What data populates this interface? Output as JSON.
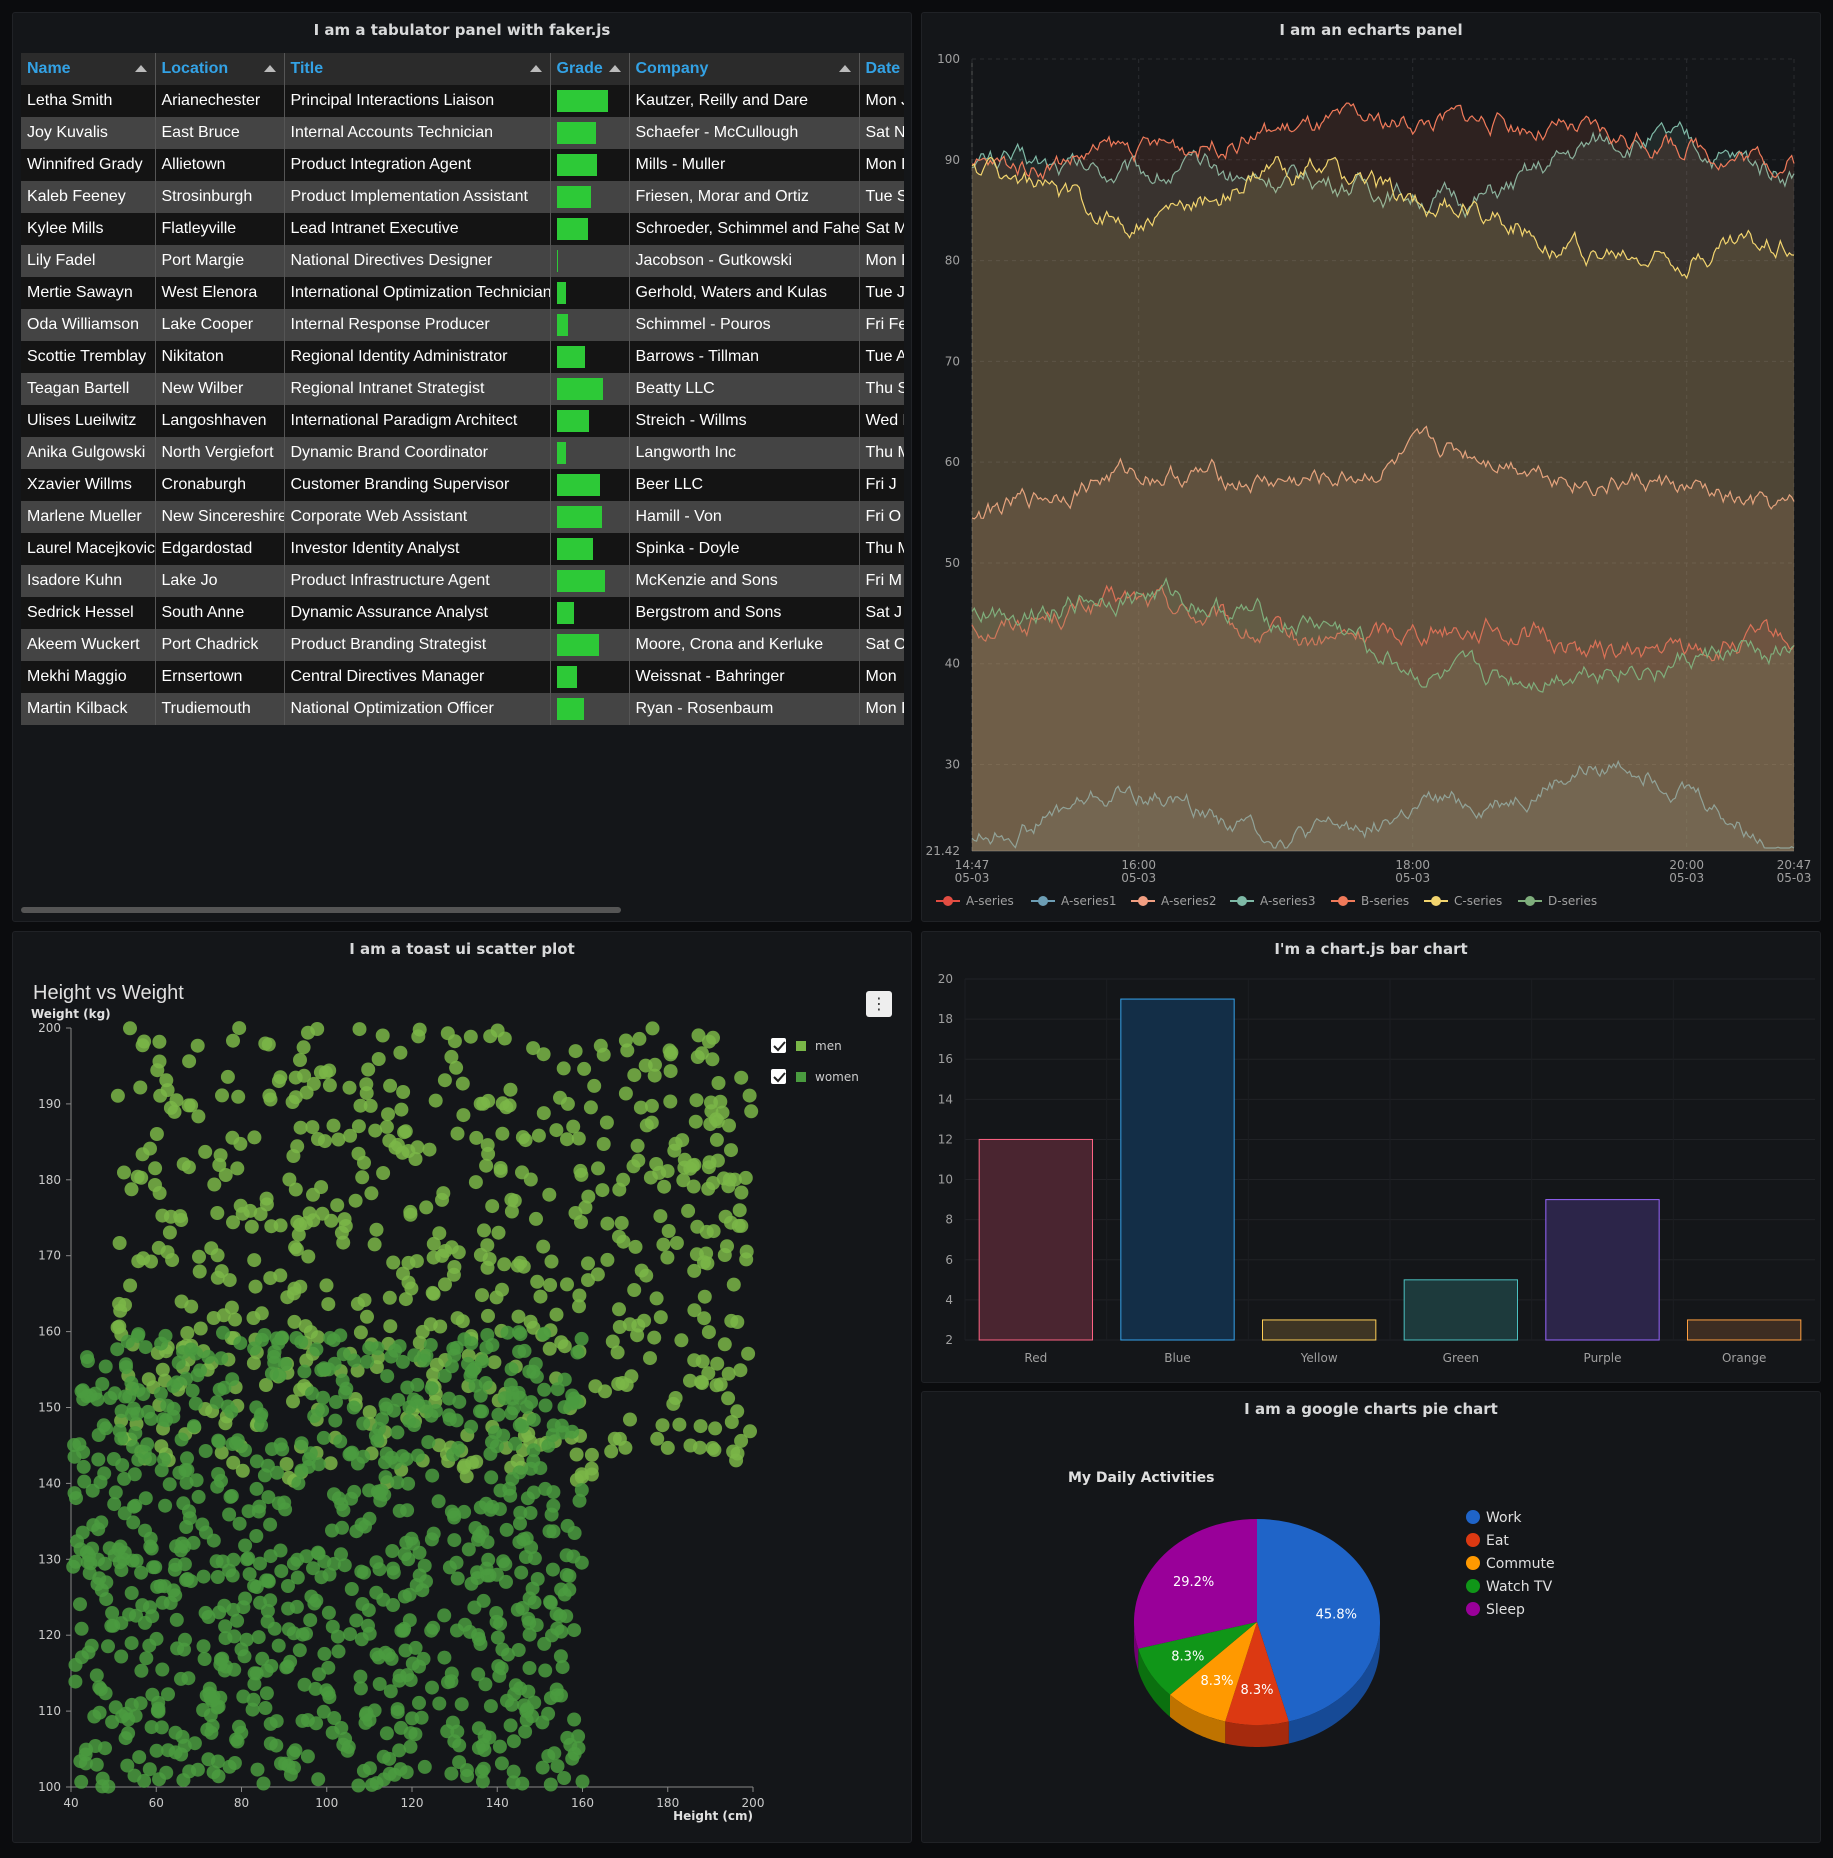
{
  "tabulator": {
    "title": "I am a tabulator panel with faker.js",
    "columns": [
      "Name",
      "Location",
      "Title",
      "Grade",
      "Company",
      "Date Of Birth"
    ],
    "rows": [
      {
        "name": "Letha Smith",
        "location": "Arianechester",
        "title": "Principal Interactions Liaison",
        "grade": 0.78,
        "company": "Kautzer, Reilly and Dare",
        "date": "Mon J"
      },
      {
        "name": "Joy Kuvalis",
        "location": "East Bruce",
        "title": "Internal Accounts Technician",
        "grade": 0.6,
        "company": "Schaefer - McCullough",
        "date": "Sat N"
      },
      {
        "name": "Winnifred Grady",
        "location": "Allietown",
        "title": "Product Integration Agent",
        "grade": 0.62,
        "company": "Mills - Muller",
        "date": "Mon D"
      },
      {
        "name": "Kaleb Feeney",
        "location": "Strosinburgh",
        "title": "Product Implementation Assistant",
        "grade": 0.52,
        "company": "Friesen, Morar and Ortiz",
        "date": "Tue S"
      },
      {
        "name": "Kylee Mills",
        "location": "Flatleyville",
        "title": "Lead Intranet Executive",
        "grade": 0.47,
        "company": "Schroeder, Schimmel and Fahey",
        "date": "Sat M"
      },
      {
        "name": "Lily Fadel",
        "location": "Port Margie",
        "title": "National Directives Designer",
        "grade": 0.03,
        "company": "Jacobson - Gutkowski",
        "date": "Mon D"
      },
      {
        "name": "Mertie Sawayn",
        "location": "West Elenora",
        "title": "International Optimization Technician",
        "grade": 0.14,
        "company": "Gerhold, Waters and Kulas",
        "date": "Tue J"
      },
      {
        "name": "Oda Williamson",
        "location": "Lake Cooper",
        "title": "Internal Response Producer",
        "grade": 0.18,
        "company": "Schimmel - Pouros",
        "date": "Fri Fe"
      },
      {
        "name": "Scottie Tremblay",
        "location": "Nikitaton",
        "title": "Regional Identity Administrator",
        "grade": 0.43,
        "company": "Barrows - Tillman",
        "date": "Tue A"
      },
      {
        "name": "Teagan Bartell",
        "location": "New Wilber",
        "title": "Regional Intranet Strategist",
        "grade": 0.71,
        "company": "Beatty LLC",
        "date": "Thu S"
      },
      {
        "name": "Ulises Lueilwitz",
        "location": "Langoshhaven",
        "title": "International Paradigm Architect",
        "grade": 0.49,
        "company": "Streich - Willms",
        "date": "Wed M"
      },
      {
        "name": "Anika Gulgowski",
        "location": "North Vergiefort",
        "title": "Dynamic Brand Coordinator",
        "grade": 0.15,
        "company": "Langworth Inc",
        "date": "Thu M"
      },
      {
        "name": "Xzavier Willms",
        "location": "Cronaburgh",
        "title": "Customer Branding Supervisor",
        "grade": 0.66,
        "company": "Beer LLC",
        "date": "Fri J"
      },
      {
        "name": "Marlene Mueller",
        "location": "New Sincereshire",
        "title": "Corporate Web Assistant",
        "grade": 0.69,
        "company": "Hamill - Von",
        "date": "Fri O"
      },
      {
        "name": "Laurel Macejkovic",
        "location": "Edgardostad",
        "title": "Investor Identity Analyst",
        "grade": 0.56,
        "company": "Spinka - Doyle",
        "date": "Thu M"
      },
      {
        "name": "Isadore Kuhn",
        "location": "Lake Jo",
        "title": "Product Infrastructure Agent",
        "grade": 0.74,
        "company": "McKenzie and Sons",
        "date": "Fri M"
      },
      {
        "name": "Sedrick Hessel",
        "location": "South Anne",
        "title": "Dynamic Assurance Analyst",
        "grade": 0.26,
        "company": "Bergstrom and Sons",
        "date": "Sat J"
      },
      {
        "name": "Akeem Wuckert",
        "location": "Port Chadrick",
        "title": "Product Branding Strategist",
        "grade": 0.65,
        "company": "Moore, Crona and Kerluke",
        "date": "Sat O"
      },
      {
        "name": "Mekhi Maggio",
        "location": "Ernsertown",
        "title": "Central Directives Manager",
        "grade": 0.31,
        "company": "Weissnat - Bahringer",
        "date": "Mon"
      },
      {
        "name": "Martin Kilback",
        "location": "Trudiemouth",
        "title": "National Optimization Officer",
        "grade": 0.42,
        "company": "Ryan - Rosenbaum",
        "date": "Mon D"
      }
    ]
  },
  "echarts": {
    "title": "I am an echarts panel",
    "chart_data": {
      "type": "line",
      "ylim": [
        21.42,
        100
      ],
      "yticks": [
        "100",
        "90",
        "80",
        "70",
        "60",
        "50",
        "40",
        "30",
        "21.42"
      ],
      "xticks": [
        {
          "t": "14:47",
          "d": "05-03"
        },
        {
          "t": "16:00",
          "d": "05-03"
        },
        {
          "t": "18:00",
          "d": "05-03"
        },
        {
          "t": "20:00",
          "d": "05-03"
        },
        {
          "t": "20:47",
          "d": "05-03"
        }
      ],
      "series": [
        {
          "name": "A-series",
          "color": "#e24d42",
          "start": 44,
          "mid": [
            46,
            42,
            44,
            41
          ],
          "end": 42,
          "amp": 1.6
        },
        {
          "name": "A-series1",
          "color": "#6d9eb5",
          "start": 23,
          "mid": [
            27,
            23,
            26,
            30
          ],
          "end": 22,
          "amp": 1.4
        },
        {
          "name": "A-series2",
          "color": "#f29f82",
          "start": 55,
          "mid": [
            59,
            58,
            61,
            58
          ],
          "end": 55,
          "amp": 1.5
        },
        {
          "name": "A-series3",
          "color": "#7eb9a6",
          "start": 90,
          "mid": [
            89,
            88,
            86,
            92
          ],
          "end": 89,
          "amp": 1.6
        },
        {
          "name": "B-series",
          "color": "#f07a5a",
          "start": 89,
          "mid": [
            91,
            93,
            94,
            92
          ],
          "end": 90,
          "amp": 1.5
        },
        {
          "name": "C-series",
          "color": "#f2d46e",
          "start": 89,
          "mid": [
            84,
            89,
            85,
            80
          ],
          "end": 82,
          "amp": 1.6
        },
        {
          "name": "D-series",
          "color": "#7fae7c",
          "start": 45,
          "mid": [
            47,
            44,
            38,
            40
          ],
          "end": 41,
          "amp": 1.6
        }
      ]
    }
  },
  "scatter": {
    "panel_title": "I am a toast ui scatter plot",
    "chart_title": "Height vs Weight",
    "menu_icon": "⋮",
    "chart_data": {
      "type": "scatter",
      "xlabel": "Height (cm)",
      "ylabel": "Weight (kg)",
      "xlim": [
        40,
        200
      ],
      "ylim": [
        100,
        200
      ],
      "xticks": [
        "40",
        "60",
        "80",
        "100",
        "120",
        "140",
        "160",
        "180",
        "200"
      ],
      "yticks": [
        "200",
        "190",
        "180",
        "170",
        "160",
        "150",
        "140",
        "130",
        "120",
        "110",
        "100"
      ],
      "series": [
        {
          "name": "men",
          "color": "#7ab648",
          "xrange": [
            50,
            200
          ],
          "yrange": [
            140,
            200
          ],
          "n": 650
        },
        {
          "name": "women",
          "color": "#4a9b3f",
          "xrange": [
            40,
            160
          ],
          "yrange": [
            100,
            160
          ],
          "n": 900
        }
      ]
    }
  },
  "bar": {
    "title": "I'm a chart.js bar chart",
    "chart_data": {
      "type": "bar",
      "categories": [
        "Red",
        "Blue",
        "Yellow",
        "Green",
        "Purple",
        "Orange"
      ],
      "values": [
        12,
        19,
        3,
        5,
        9,
        3
      ],
      "ylim": [
        2,
        20
      ],
      "yticks": [
        "20",
        "18",
        "16",
        "14",
        "12",
        "10",
        "8",
        "6",
        "4",
        "2"
      ],
      "fills": [
        "#4a2530",
        "#132e47",
        "#3e3524",
        "#1d3a3c",
        "#2c2549",
        "#3d2d22"
      ],
      "strokes": [
        "#ff6384",
        "#36a2eb",
        "#ffce56",
        "#4bc0c0",
        "#9966ff",
        "#ff9f40"
      ]
    }
  },
  "pie": {
    "panel_title": "I am a google charts pie chart",
    "chart_data": {
      "type": "pie",
      "title": "My Daily Activities",
      "labels": [
        "Work",
        "Eat",
        "Commute",
        "Watch TV",
        "Sleep"
      ],
      "values": [
        11,
        2,
        2,
        2,
        7
      ],
      "percents": [
        "45.8%",
        "8.3%",
        "8.3%",
        "8.3%",
        "29.2%"
      ],
      "colors": [
        "#1f64c8",
        "#dc3912",
        "#ff9900",
        "#109618",
        "#990099"
      ],
      "dark": [
        "#164a96",
        "#a52a0d",
        "#bf7300",
        "#0b700f",
        "#720072"
      ]
    }
  }
}
